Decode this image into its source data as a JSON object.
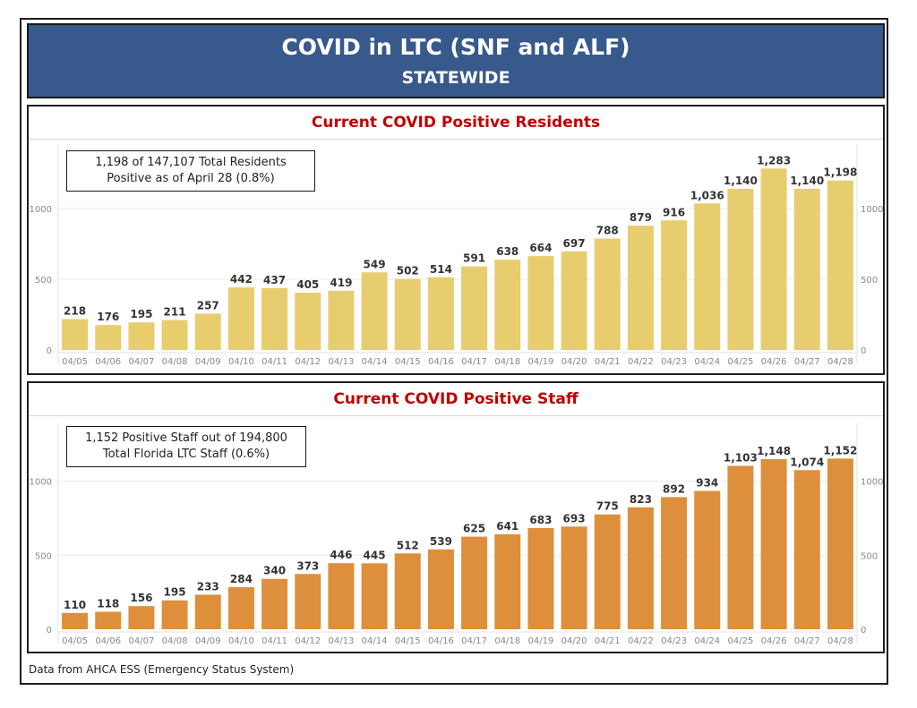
{
  "header": {
    "title": "COVID in LTC (SNF and ALF)",
    "subtitle": "STATEWIDE"
  },
  "footer": "Data from AHCA ESS (Emergency Status System)",
  "colors": {
    "banner": "#37598b",
    "title_red": "#c00000",
    "residents_bar": "#e8cd6f",
    "staff_bar": "#dd8f3c"
  },
  "chart_data": [
    {
      "type": "bar",
      "title": "Current COVID Positive Residents",
      "annotation": [
        "1,198 of 147,107 Total Residents",
        "Positive as of April 28 (0.8%)"
      ],
      "categories": [
        "04/05",
        "04/06",
        "04/07",
        "04/08",
        "04/09",
        "04/10",
        "04/11",
        "04/12",
        "04/13",
        "04/14",
        "04/15",
        "04/16",
        "04/17",
        "04/18",
        "04/19",
        "04/20",
        "04/21",
        "04/22",
        "04/23",
        "04/24",
        "04/25",
        "04/26",
        "04/27",
        "04/28"
      ],
      "values": [
        218,
        176,
        195,
        211,
        257,
        442,
        437,
        405,
        419,
        549,
        502,
        514,
        591,
        638,
        664,
        697,
        788,
        879,
        916,
        1036,
        1140,
        1283,
        1140,
        1198
      ],
      "value_labels": [
        "218",
        "176",
        "195",
        "211",
        "257",
        "442",
        "437",
        "405",
        "419",
        "549",
        "502",
        "514",
        "591",
        "638",
        "664",
        "697",
        "788",
        "879",
        "916",
        "1,036",
        "1,140",
        "1,283",
        "1,140",
        "1,198"
      ],
      "yticks": [
        0,
        500,
        1000
      ],
      "ylim": [
        0,
        1400
      ],
      "color": "#e8cd6f",
      "grid": true
    },
    {
      "type": "bar",
      "title": "Current COVID Positive Staff",
      "annotation": [
        "1,152 Positive Staff out of 194,800",
        "Total Florida LTC Staff (0.6%)"
      ],
      "categories": [
        "04/05",
        "04/06",
        "04/07",
        "04/08",
        "04/09",
        "04/10",
        "04/11",
        "04/12",
        "04/13",
        "04/14",
        "04/15",
        "04/16",
        "04/17",
        "04/18",
        "04/19",
        "04/20",
        "04/21",
        "04/22",
        "04/23",
        "04/24",
        "04/25",
        "04/26",
        "04/27",
        "04/28"
      ],
      "values": [
        110,
        118,
        156,
        195,
        233,
        284,
        340,
        373,
        446,
        445,
        512,
        539,
        625,
        641,
        683,
        693,
        775,
        823,
        892,
        934,
        1103,
        1148,
        1074,
        1152
      ],
      "value_labels": [
        "110",
        "118",
        "156",
        "195",
        "233",
        "284",
        "340",
        "373",
        "446",
        "445",
        "512",
        "539",
        "625",
        "641",
        "683",
        "693",
        "775",
        "823",
        "892",
        "934",
        "1,103",
        "1,148",
        "1,074",
        "1,152"
      ],
      "yticks": [
        0,
        500,
        1000
      ],
      "ylim": [
        0,
        1400
      ],
      "color": "#dd8f3c",
      "grid": true
    }
  ]
}
